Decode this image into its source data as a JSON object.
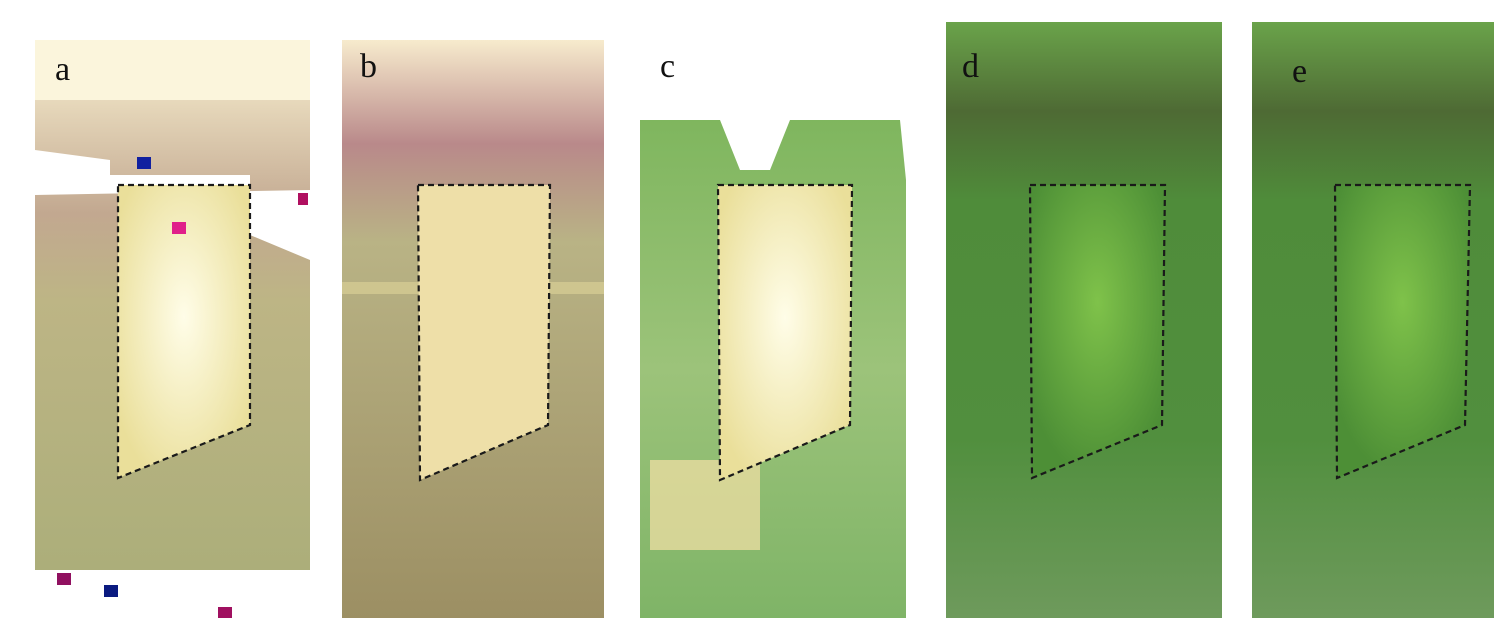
{
  "panels": [
    {
      "label": "a"
    },
    {
      "label": "b"
    },
    {
      "label": "c"
    },
    {
      "label": "d"
    },
    {
      "label": "e"
    }
  ]
}
